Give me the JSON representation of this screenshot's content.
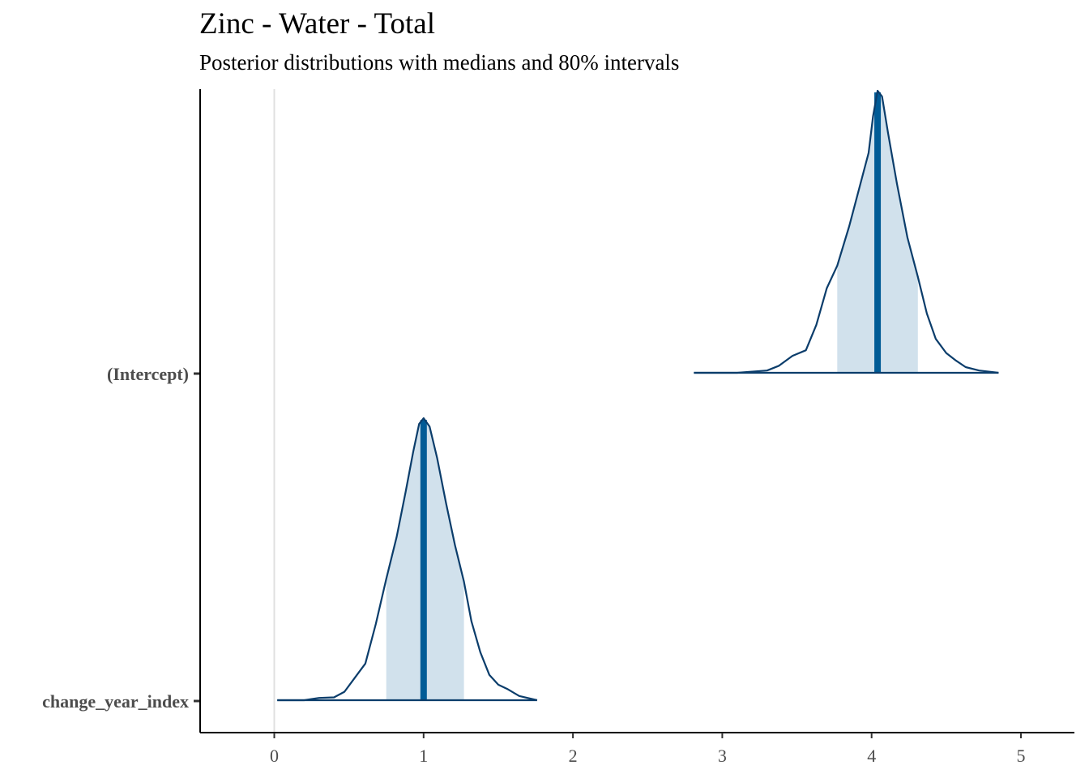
{
  "chart_data": {
    "type": "area",
    "title": "Zinc - Water - Total",
    "subtitle": "Posterior distributions with medians and 80% intervals",
    "xlabel": "",
    "ylabel": "",
    "xlim": [
      -0.5,
      5.35
    ],
    "x_ticks": [
      "0",
      "1",
      "2",
      "3",
      "4",
      "5"
    ],
    "x_tick_values": [
      0,
      1,
      2,
      3,
      4,
      5
    ],
    "reference_line_x": 0,
    "grid": false,
    "colors": {
      "outline": "#0b3d6b",
      "fill": "#d1e1ec",
      "median": "#005b96",
      "vline": "#e0e0e0",
      "axis": "#000000",
      "tick_text": "#4d4d4d"
    },
    "series": [
      {
        "name": "(Intercept)",
        "median": 4.04,
        "interval80": [
          3.77,
          4.31
        ],
        "density": [
          [
            2.81,
            0.0
          ],
          [
            3.1,
            0.0
          ],
          [
            3.3,
            0.008
          ],
          [
            3.38,
            0.025
          ],
          [
            3.47,
            0.06
          ],
          [
            3.56,
            0.08
          ],
          [
            3.63,
            0.17
          ],
          [
            3.7,
            0.3
          ],
          [
            3.77,
            0.38
          ],
          [
            3.85,
            0.52
          ],
          [
            3.93,
            0.68
          ],
          [
            3.98,
            0.78
          ],
          [
            4.01,
            0.91
          ],
          [
            4.04,
            1.0
          ],
          [
            4.07,
            0.98
          ],
          [
            4.11,
            0.85
          ],
          [
            4.17,
            0.67
          ],
          [
            4.24,
            0.48
          ],
          [
            4.31,
            0.34
          ],
          [
            4.37,
            0.21
          ],
          [
            4.43,
            0.12
          ],
          [
            4.5,
            0.07
          ],
          [
            4.56,
            0.045
          ],
          [
            4.63,
            0.02
          ],
          [
            4.72,
            0.008
          ],
          [
            4.85,
            0.0
          ]
        ]
      },
      {
        "name": "change_year_index",
        "median": 1.0,
        "interval80": [
          0.75,
          1.27
        ],
        "density": [
          [
            0.02,
            0.0
          ],
          [
            0.2,
            0.0
          ],
          [
            0.3,
            0.008
          ],
          [
            0.4,
            0.01
          ],
          [
            0.47,
            0.03
          ],
          [
            0.54,
            0.08
          ],
          [
            0.61,
            0.13
          ],
          [
            0.68,
            0.27
          ],
          [
            0.75,
            0.43
          ],
          [
            0.82,
            0.58
          ],
          [
            0.88,
            0.74
          ],
          [
            0.93,
            0.88
          ],
          [
            0.97,
            0.98
          ],
          [
            1.0,
            1.0
          ],
          [
            1.04,
            0.97
          ],
          [
            1.09,
            0.86
          ],
          [
            1.15,
            0.7
          ],
          [
            1.21,
            0.55
          ],
          [
            1.27,
            0.42
          ],
          [
            1.32,
            0.28
          ],
          [
            1.38,
            0.17
          ],
          [
            1.44,
            0.09
          ],
          [
            1.5,
            0.055
          ],
          [
            1.56,
            0.04
          ],
          [
            1.64,
            0.015
          ],
          [
            1.76,
            0.0
          ]
        ]
      }
    ]
  }
}
